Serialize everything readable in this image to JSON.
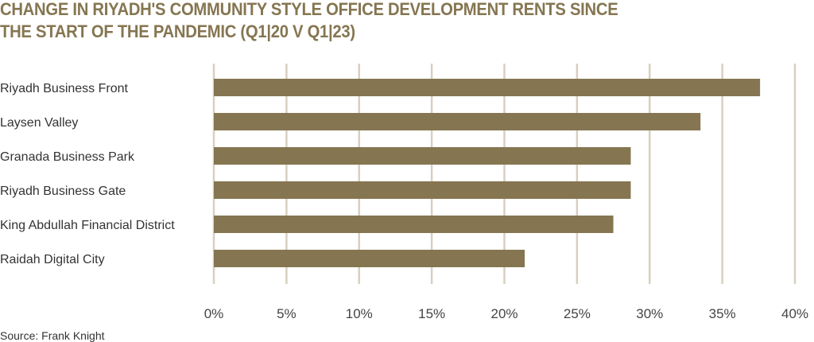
{
  "chart_data": {
    "type": "bar",
    "orientation": "horizontal",
    "title": "CHANGE IN RIYADH'S COMMUNITY STYLE OFFICE DEVELOPMENT RENTS SINCE THE START OF THE PANDEMIC (Q1|20 V Q1|23)",
    "categories": [
      "Riyadh Business Front",
      "Laysen Valley",
      "Granada Business Park",
      "Riyadh Business Gate",
      "King Abdullah Financial District",
      "Raidah Digital City"
    ],
    "values": [
      37.6,
      33.5,
      28.7,
      28.7,
      27.5,
      21.4
    ],
    "xlim": [
      0,
      40
    ],
    "xticks": [
      "0%",
      "5%",
      "10%",
      "15%",
      "20%",
      "25%",
      "30%",
      "35%",
      "40%"
    ],
    "grid": true,
    "bar_color": "#857651",
    "grid_color": "#d8cfc0",
    "source": "Source:  Frank Knight"
  }
}
